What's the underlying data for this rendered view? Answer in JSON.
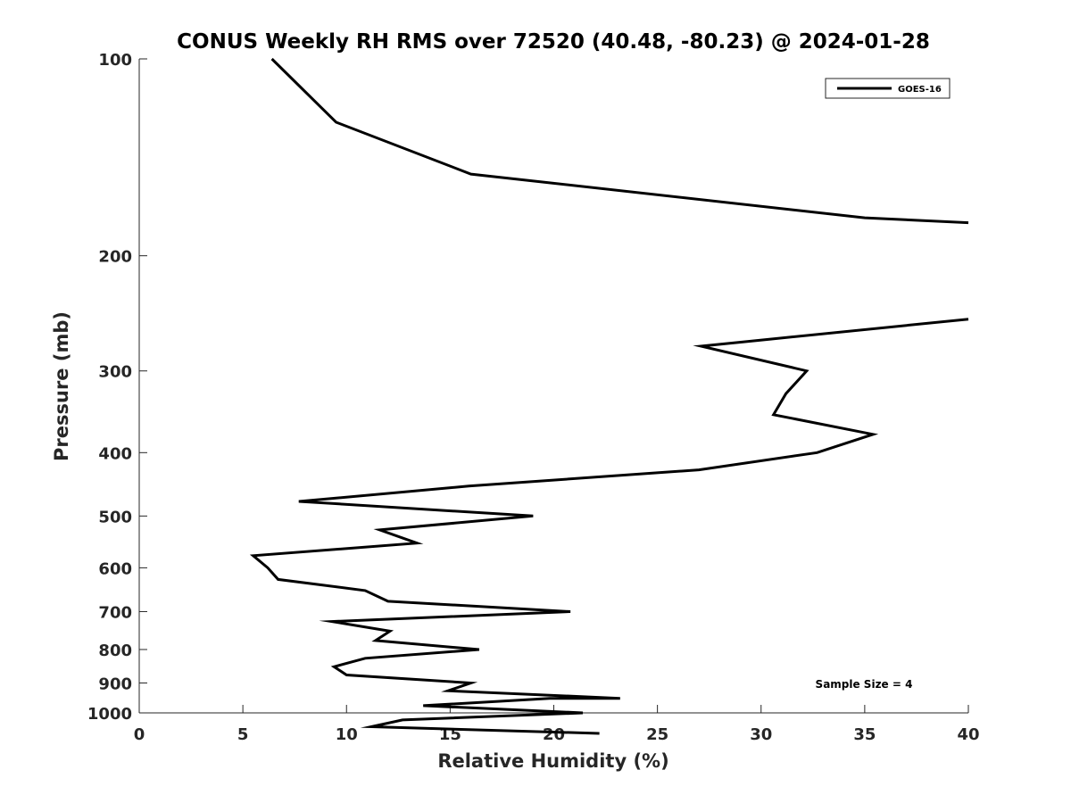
{
  "chart_data": {
    "type": "line",
    "title": "CONUS Weekly RH RMS over 72520 (40.48, -80.23) @ 2024-01-28",
    "xlabel": "Relative Humidity (%)",
    "ylabel": "Pressure (mb)",
    "xlim": [
      0,
      40
    ],
    "ylim": [
      100,
      1000
    ],
    "y_scale": "log",
    "y_reversed": true,
    "grid": false,
    "legend_position": "top-right",
    "x_ticks": [
      "0",
      "5",
      "10",
      "15",
      "20",
      "25",
      "30",
      "35",
      "40"
    ],
    "x_tick_values": [
      0,
      5,
      10,
      15,
      20,
      25,
      30,
      35,
      40
    ],
    "y_ticks": [
      "100",
      "200",
      "300",
      "400",
      "500",
      "600",
      "700",
      "800",
      "900",
      "1000"
    ],
    "y_tick_values": [
      100,
      200,
      300,
      400,
      500,
      600,
      700,
      800,
      900,
      1000
    ],
    "series": [
      {
        "name": "GOES-16",
        "color": "#000000",
        "segments": [
          [
            {
              "x": 6.4,
              "y": 100
            },
            {
              "x": 9.5,
              "y": 125
            },
            {
              "x": 16.0,
              "y": 150
            },
            {
              "x": 35.0,
              "y": 175
            },
            {
              "x": 40.0,
              "y": 178
            }
          ],
          [
            {
              "x": 40.0,
              "y": 250
            },
            {
              "x": 27.1,
              "y": 275
            },
            {
              "x": 32.2,
              "y": 300
            },
            {
              "x": 31.2,
              "y": 325
            },
            {
              "x": 30.6,
              "y": 350
            },
            {
              "x": 35.4,
              "y": 375
            },
            {
              "x": 32.7,
              "y": 400
            },
            {
              "x": 27.0,
              "y": 425
            },
            {
              "x": 15.9,
              "y": 450
            },
            {
              "x": 7.7,
              "y": 475
            },
            {
              "x": 19.0,
              "y": 500
            },
            {
              "x": 11.6,
              "y": 525
            },
            {
              "x": 13.4,
              "y": 550
            },
            {
              "x": 5.5,
              "y": 575
            },
            {
              "x": 6.2,
              "y": 600
            },
            {
              "x": 6.7,
              "y": 625
            },
            {
              "x": 10.9,
              "y": 650
            },
            {
              "x": 12.0,
              "y": 675
            },
            {
              "x": 20.8,
              "y": 700
            },
            {
              "x": 9.3,
              "y": 725
            },
            {
              "x": 12.1,
              "y": 750
            },
            {
              "x": 11.4,
              "y": 775
            },
            {
              "x": 16.4,
              "y": 800
            },
            {
              "x": 10.9,
              "y": 825
            },
            {
              "x": 9.4,
              "y": 850
            },
            {
              "x": 10.0,
              "y": 875
            },
            {
              "x": 16.0,
              "y": 900
            },
            {
              "x": 14.9,
              "y": 925
            },
            {
              "x": 23.2,
              "y": 950
            },
            {
              "x": 19.8,
              "y": 950
            },
            {
              "x": 13.7,
              "y": 975
            },
            {
              "x": 21.4,
              "y": 1000
            },
            {
              "x": 12.7,
              "y": 1025
            },
            {
              "x": 11.2,
              "y": 1050
            },
            {
              "x": 22.2,
              "y": 1075
            }
          ]
        ]
      }
    ],
    "annotations": [
      {
        "text": "Sample Size = 4"
      }
    ]
  }
}
